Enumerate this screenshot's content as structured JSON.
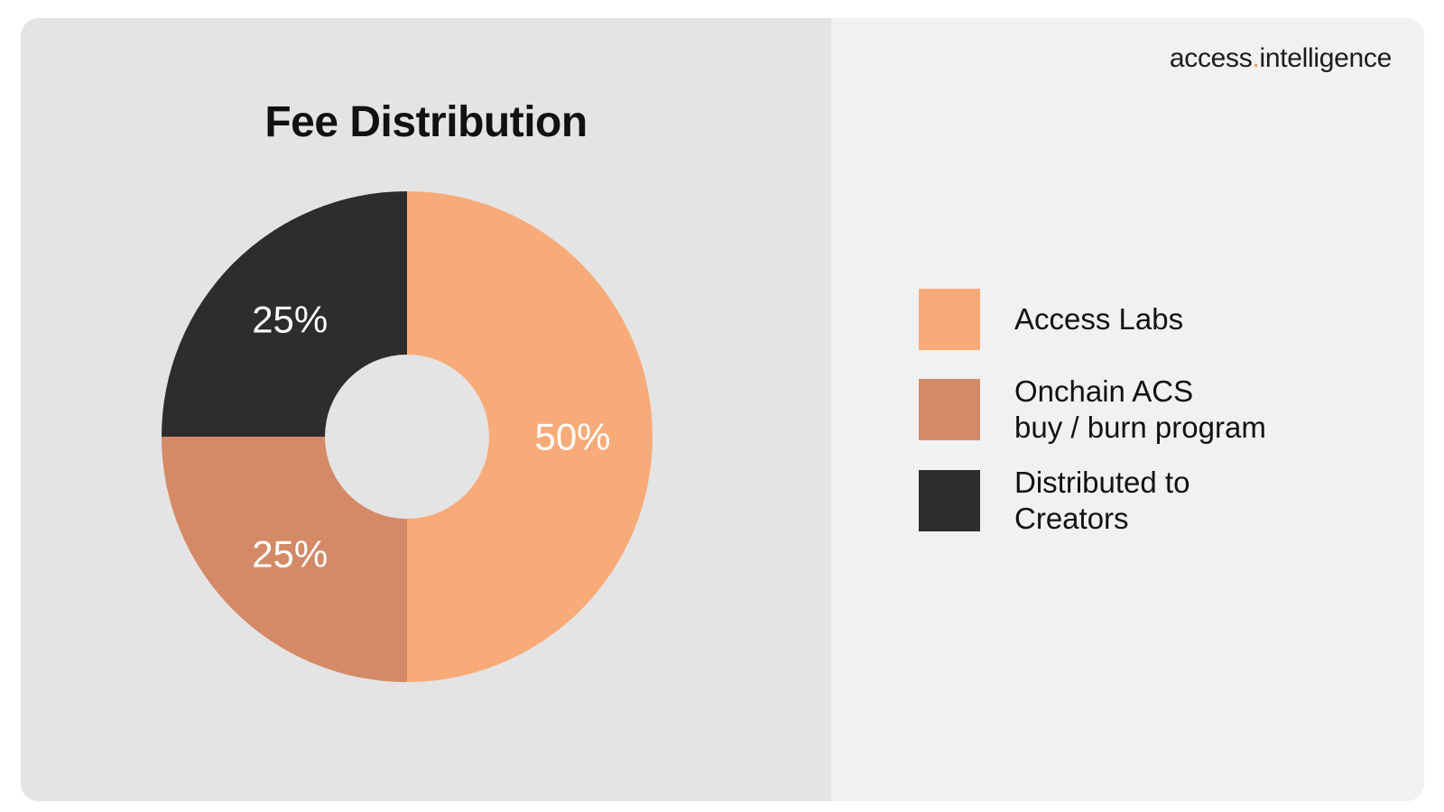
{
  "brand": {
    "name_part1": "access",
    "separator": ".",
    "name_part2": "intelligence",
    "accent_color": "#e89a6a"
  },
  "chart_data": {
    "type": "pie",
    "title": "Fee Distribution",
    "donut": true,
    "categories": [
      "Access Labs",
      "Onchain ACS\nbuy / burn program",
      "Distributed to\nCreators"
    ],
    "values": [
      50,
      25,
      25
    ],
    "labels": [
      "50%",
      "25%",
      "25%"
    ],
    "colors": [
      "#f8ab78",
      "#d48a66",
      "#2d2d2d"
    ],
    "start_angle_deg": 0,
    "direction": "clockwise",
    "legend": "right"
  },
  "colors": {
    "background_left": "#e4e4e4",
    "background_right": "#f1f1f1",
    "text": "#111111"
  }
}
